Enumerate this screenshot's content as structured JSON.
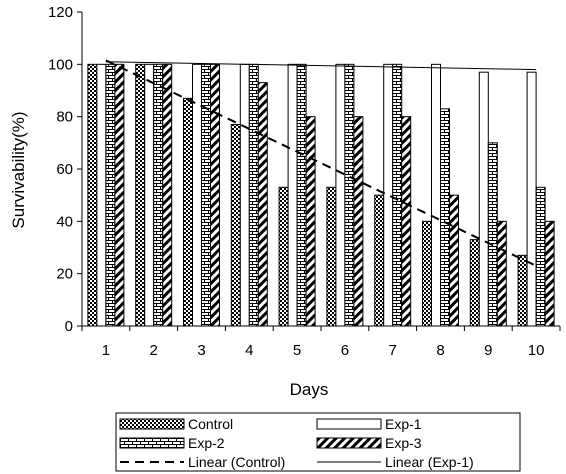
{
  "chart_data": {
    "type": "bar",
    "xlabel": "Days",
    "ylabel": "Survivability(%)",
    "ylim": [
      0,
      120
    ],
    "yticks": [
      0,
      20,
      40,
      60,
      80,
      100,
      120
    ],
    "categories": [
      "1",
      "2",
      "3",
      "4",
      "5",
      "6",
      "7",
      "8",
      "9",
      "10"
    ],
    "series": [
      {
        "name": "Control",
        "pattern": "checker",
        "values": [
          100,
          100,
          87,
          77,
          53,
          53,
          50,
          40,
          33,
          27
        ]
      },
      {
        "name": "Exp-1",
        "pattern": "plain",
        "values": [
          100,
          100,
          100,
          100,
          100,
          100,
          100,
          100,
          97,
          97
        ]
      },
      {
        "name": "Exp-2",
        "pattern": "brick",
        "values": [
          100,
          100,
          100,
          100,
          100,
          100,
          100,
          83,
          70,
          53
        ]
      },
      {
        "name": "Exp-3",
        "pattern": "diagonal",
        "values": [
          100,
          100,
          100,
          93,
          80,
          80,
          80,
          50,
          40,
          40
        ]
      }
    ],
    "trendlines": [
      {
        "name": "Linear (Control)",
        "style": "dashed",
        "start": 101.5,
        "end": 23
      },
      {
        "name": "Linear (Exp-1)",
        "style": "solid",
        "start": 101,
        "end": 98
      }
    ],
    "legend": {
      "placement": "bottom",
      "entries": [
        "Control",
        "Exp-1",
        "Exp-2",
        "Exp-3",
        "Linear (Control)",
        "Linear (Exp-1)"
      ]
    },
    "grid": false
  }
}
